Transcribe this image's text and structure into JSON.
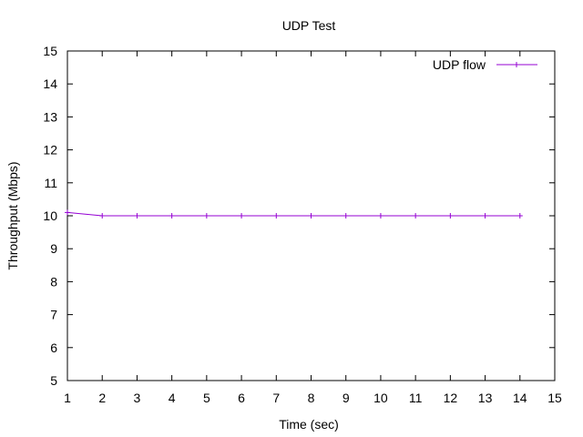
{
  "chart_data": {
    "type": "line",
    "title": "UDP Test",
    "xlabel": "Time (sec)",
    "ylabel": "Throughput (Mbps)",
    "xlim": [
      1,
      15
    ],
    "ylim": [
      5,
      15
    ],
    "xticks": [
      "1",
      "2",
      "3",
      "4",
      "5",
      "6",
      "7",
      "8",
      "9",
      "10",
      "11",
      "12",
      "13",
      "14",
      "15"
    ],
    "yticks": [
      "5",
      "6",
      "7",
      "8",
      "9",
      "10",
      "11",
      "12",
      "13",
      "14",
      "15"
    ],
    "grid": false,
    "legend_position": "top-right",
    "series": [
      {
        "name": "UDP flow",
        "color": "#9400d3",
        "marker": "plus",
        "x": [
          1,
          2,
          3,
          4,
          5,
          6,
          7,
          8,
          9,
          10,
          11,
          12,
          13,
          14
        ],
        "y": [
          10.1,
          10.0,
          10.0,
          10.0,
          10.0,
          10.0,
          10.0,
          10.0,
          10.0,
          10.0,
          10.0,
          10.0,
          10.0,
          10.0
        ]
      }
    ]
  }
}
